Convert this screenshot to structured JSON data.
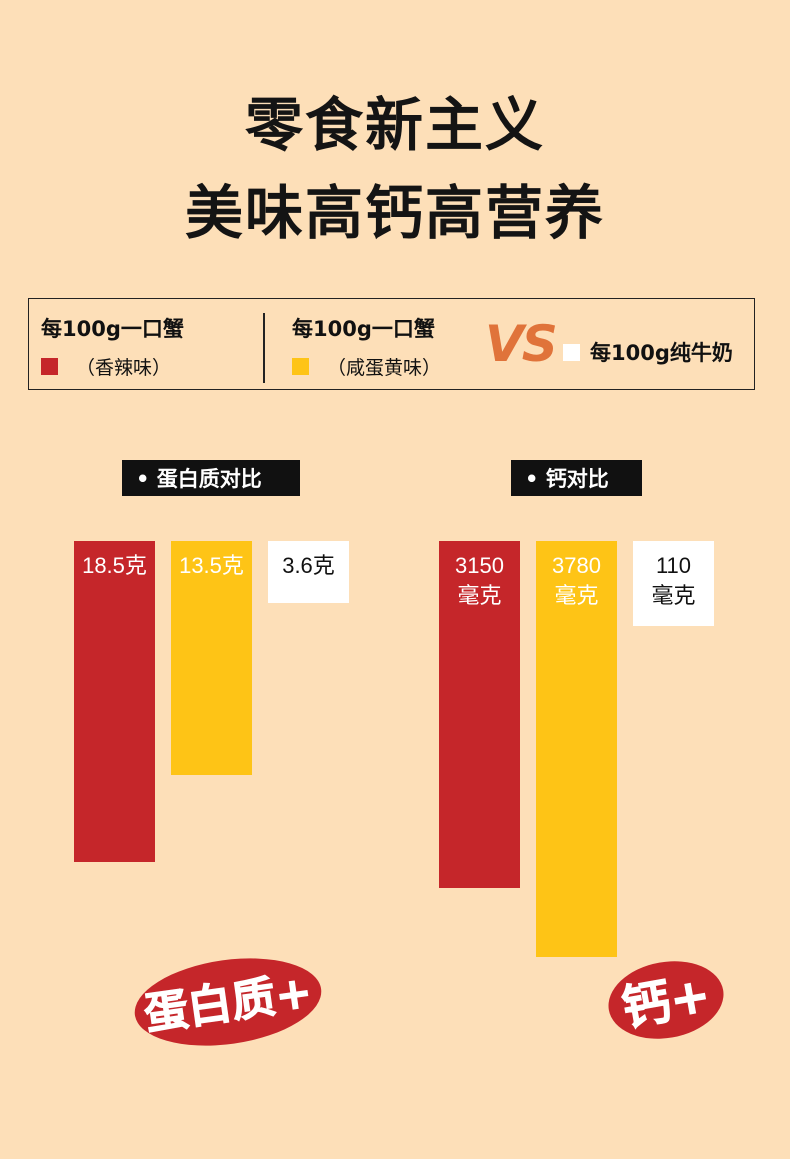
{
  "title": {
    "line1": "零食新主义",
    "line2": "美味高钙高营养"
  },
  "legend": {
    "item1": {
      "name": "每100g一口蟹",
      "sub": "（香辣味）",
      "color": "#c5262a"
    },
    "item2": {
      "name": "每100g一口蟹",
      "sub": "（咸蛋黄味）",
      "color": "#fec416"
    },
    "vs": "VS",
    "item3": {
      "name": "每100g纯牛奶",
      "color": "#ffffff"
    }
  },
  "chart_data": [
    {
      "type": "bar",
      "tag": "•  蛋白质对比",
      "categories": [
        "香辣味",
        "咸蛋黄味",
        "纯牛奶"
      ],
      "values": [
        18.5,
        13.5,
        3.6
      ],
      "labels": [
        "18.5克",
        "13.5克",
        "3.6克"
      ],
      "colors": [
        "#c5262a",
        "#fec416",
        "#ffffff"
      ],
      "unit": "克"
    },
    {
      "type": "bar",
      "tag": "•  钙对比",
      "categories": [
        "香辣味",
        "咸蛋黄味",
        "纯牛奶"
      ],
      "values": [
        3150,
        3780,
        110
      ],
      "labels": [
        [
          "3150",
          "毫克"
        ],
        [
          "3780",
          "毫克"
        ],
        [
          "110",
          "毫克"
        ]
      ],
      "colors": [
        "#c5262a",
        "#fec416",
        "#ffffff"
      ],
      "unit": "毫克"
    }
  ],
  "stamps": {
    "protein": "蛋白质+",
    "calcium": "钙+"
  }
}
